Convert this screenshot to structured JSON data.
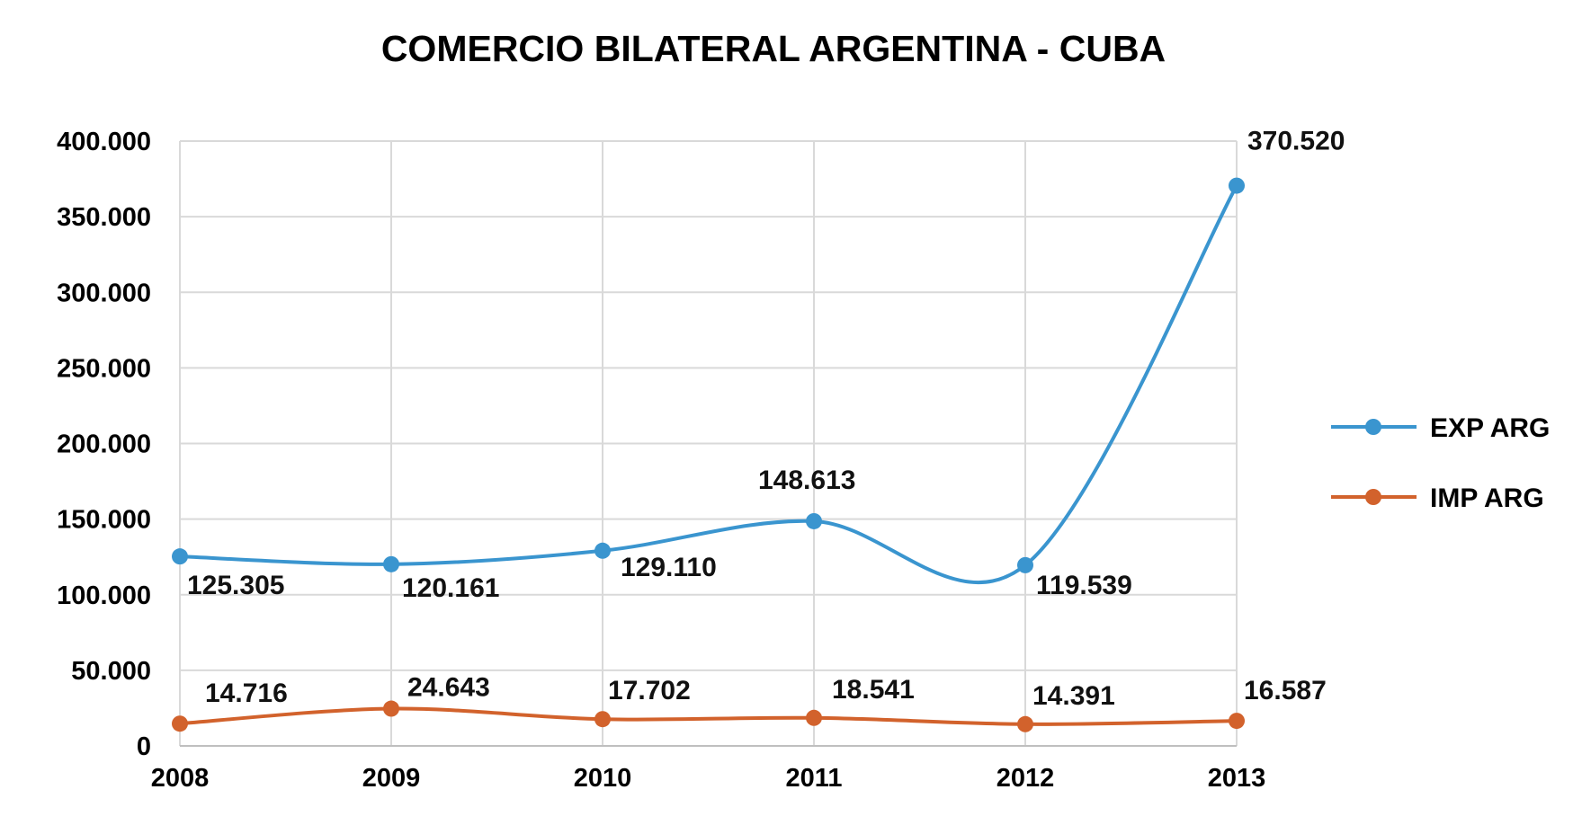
{
  "chart_data": {
    "type": "line",
    "title": "COMERCIO BILATERAL ARGENTINA - CUBA",
    "xlabel": "",
    "ylabel": "",
    "categories": [
      "2008",
      "2009",
      "2010",
      "2011",
      "2012",
      "2013"
    ],
    "ylim": [
      0,
      400000
    ],
    "yticks": [
      {
        "value": 0,
        "label": "0"
      },
      {
        "value": 50000,
        "label": "50.000"
      },
      {
        "value": 100000,
        "label": "100.000"
      },
      {
        "value": 150000,
        "label": "150.000"
      },
      {
        "value": 200000,
        "label": "200.000"
      },
      {
        "value": 250000,
        "label": "250.000"
      },
      {
        "value": 300000,
        "label": "300.000"
      },
      {
        "value": 350000,
        "label": "350.000"
      },
      {
        "value": 400000,
        "label": "400.000"
      }
    ],
    "grid": true,
    "legend_position": "right",
    "series": [
      {
        "name": "EXP ARG",
        "color": "#3a95cf",
        "values": [
          125305,
          120161,
          129110,
          148613,
          119539,
          370520
        ],
        "labels": [
          "125.305",
          "120.161",
          "129.110",
          "148.613",
          "119.539",
          "370.520"
        ]
      },
      {
        "name": "IMP ARG",
        "color": "#d2622c",
        "values": [
          14716,
          24643,
          17702,
          18541,
          14391,
          16587
        ],
        "labels": [
          "14.716",
          "24.643",
          "17.702",
          "18.541",
          "14.391",
          "16.587"
        ]
      }
    ]
  }
}
